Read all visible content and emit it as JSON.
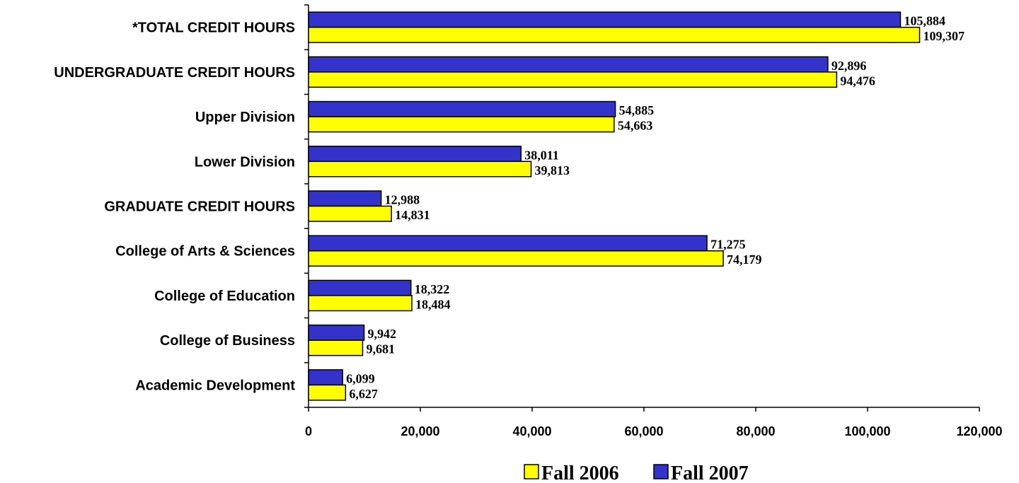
{
  "chart_data": {
    "type": "bar",
    "orientation": "horizontal",
    "title": "",
    "xlabel": "",
    "ylabel": "",
    "categories": [
      "*TOTAL CREDIT HOURS",
      "UNDERGRADUATE CREDIT HOURS",
      "Upper Division",
      "Lower Division",
      "GRADUATE CREDIT HOURS",
      "College of Arts & Sciences",
      "College of Education",
      "College of Business",
      "Academic Development"
    ],
    "series": [
      {
        "name": "Fall 2007",
        "color": "#3333cc",
        "values": [
          105884,
          92896,
          54885,
          38011,
          12988,
          71275,
          18322,
          9942,
          6099
        ],
        "labels": [
          "105,884",
          "92,896",
          "54,885",
          "38,011",
          "12,988",
          "71,275",
          "18,322",
          "9,942",
          "6,099"
        ]
      },
      {
        "name": "Fall 2006",
        "color": "#ffff00",
        "values": [
          109307,
          94476,
          54663,
          39813,
          14831,
          74179,
          18484,
          9681,
          6627
        ],
        "labels": [
          "109,307",
          "94,476",
          "54,663",
          "39,813",
          "14,831",
          "74,179",
          "18,484",
          "9,681",
          "6,627"
        ]
      }
    ],
    "xlim": [
      0,
      120000
    ],
    "xticks": [
      0,
      20000,
      40000,
      60000,
      80000,
      100000,
      120000
    ],
    "xtick_labels": [
      "0",
      "20,000",
      "40,000",
      "60,000",
      "80,000",
      "100,000",
      "120,000"
    ],
    "grid": false,
    "legend": {
      "position": "bottom-right",
      "entries": [
        {
          "name": "Fall 2006",
          "color": "#ffff00"
        },
        {
          "name": "Fall 2007",
          "color": "#3333cc"
        }
      ]
    }
  }
}
